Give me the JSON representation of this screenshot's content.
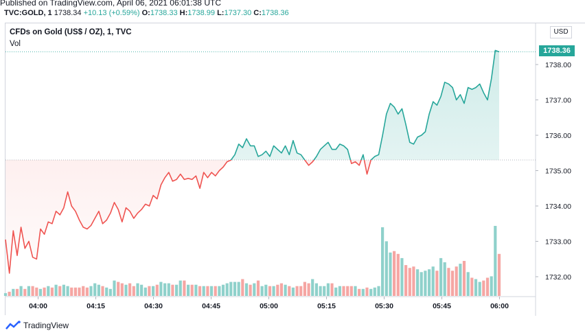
{
  "header": {
    "published": "Published on TradingView.com, April 06, 2021 06:01:38 UTC",
    "symbol": "TVC:GOLD, 1",
    "last": "1738.34",
    "change": "+10.13 (+0.59%)",
    "open_label": "O:",
    "open": "1738.33",
    "high_label": "H:",
    "high": "1738.99",
    "low_label": "L:",
    "low": "1737.30",
    "close_label": "C:",
    "close": "1738.36"
  },
  "legend": {
    "title": "CFDs on Gold (US$ / OZ), 1, TVC",
    "vol": "Vol"
  },
  "currency": "USD",
  "last_price_label": "1738.36",
  "footer": {
    "brand": "TradingView"
  },
  "colors": {
    "up": "#26a69a",
    "down": "#ef5350",
    "up_volume": "#8fd1cb",
    "down_volume": "#f5a6a3"
  },
  "chart_data": {
    "type": "line",
    "baseline": 1735.3,
    "ylim": [
      1731.4,
      1738.6
    ],
    "yticks": [
      1732,
      1733,
      1734,
      1735,
      1736,
      1737,
      1738
    ],
    "ytick_labels": [
      "1732.00",
      "1733.00",
      "1734.00",
      "1735.00",
      "1736.00",
      "1737.00",
      "1738.00"
    ],
    "x_start": "03:53",
    "x_end": "06:00",
    "xticks": [
      "04:00",
      "04:15",
      "04:30",
      "04:45",
      "05:00",
      "05:15",
      "05:30",
      "05:45",
      "06:00"
    ],
    "price": [
      1733.05,
      1732.1,
      1733.3,
      1732.6,
      1733.4,
      1732.8,
      1733.0,
      1732.55,
      1732.5,
      1733.35,
      1733.2,
      1733.55,
      1733.5,
      1733.85,
      1733.75,
      1733.95,
      1734.4,
      1734.0,
      1733.85,
      1733.6,
      1733.4,
      1733.35,
      1733.45,
      1733.65,
      1733.85,
      1733.5,
      1733.6,
      1733.8,
      1734.1,
      1733.9,
      1733.55,
      1733.95,
      1733.85,
      1733.65,
      1733.8,
      1733.9,
      1734.05,
      1734.0,
      1734.3,
      1734.2,
      1734.6,
      1734.8,
      1734.95,
      1734.7,
      1734.75,
      1734.9,
      1734.75,
      1734.78,
      1734.75,
      1734.85,
      1734.5,
      1734.95,
      1734.8,
      1734.95,
      1734.85,
      1735.0,
      1735.1,
      1735.25,
      1735.3,
      1735.45,
      1735.75,
      1735.65,
      1735.9,
      1735.7,
      1735.7,
      1735.4,
      1735.45,
      1735.55,
      1735.4,
      1735.7,
      1735.6,
      1735.5,
      1735.7,
      1735.45,
      1735.85,
      1735.5,
      1735.45,
      1735.3,
      1735.15,
      1735.25,
      1735.4,
      1735.6,
      1735.7,
      1735.8,
      1735.6,
      1735.6,
      1735.75,
      1735.7,
      1735.6,
      1735.2,
      1735.25,
      1735.15,
      1735.45,
      1734.9,
      1735.3,
      1735.4,
      1735.45,
      1736.0,
      1736.6,
      1736.9,
      1736.8,
      1736.6,
      1736.75,
      1736.3,
      1735.8,
      1735.75,
      1735.95,
      1736.0,
      1736.1,
      1736.6,
      1736.95,
      1736.85,
      1737.1,
      1737.5,
      1737.45,
      1737.35,
      1737.0,
      1737.15,
      1736.9,
      1737.35,
      1737.3,
      1737.35,
      1737.45,
      1737.2,
      1737.0,
      1737.6,
      1738.4,
      1738.36
    ],
    "volume": [
      2,
      3,
      5,
      5,
      7,
      5,
      7,
      7,
      6,
      5,
      6,
      7,
      6,
      8,
      7,
      8,
      7,
      6,
      6,
      6,
      7,
      6,
      7,
      9,
      8,
      7,
      6,
      5,
      11,
      10,
      9,
      8,
      9,
      7,
      9,
      8,
      6,
      7,
      7,
      8,
      10,
      9,
      9,
      8,
      8,
      11,
      11,
      8,
      8,
      8,
      7,
      7,
      7,
      7,
      7,
      7,
      8,
      9,
      10,
      10,
      10,
      12,
      9,
      8,
      9,
      11,
      7,
      8,
      7,
      7,
      8,
      9,
      8,
      7,
      6,
      7,
      7,
      10,
      9,
      12,
      9,
      7,
      7,
      9,
      9,
      6,
      7,
      7,
      7,
      7,
      7,
      5,
      5,
      6,
      5,
      6,
      7,
      49,
      39,
      31,
      32,
      30,
      27,
      22,
      20,
      21,
      19,
      17,
      18,
      19,
      21,
      18,
      27,
      24,
      20,
      18,
      21,
      23,
      25,
      17,
      13,
      12,
      10,
      11,
      13,
      14,
      50,
      30
    ]
  }
}
